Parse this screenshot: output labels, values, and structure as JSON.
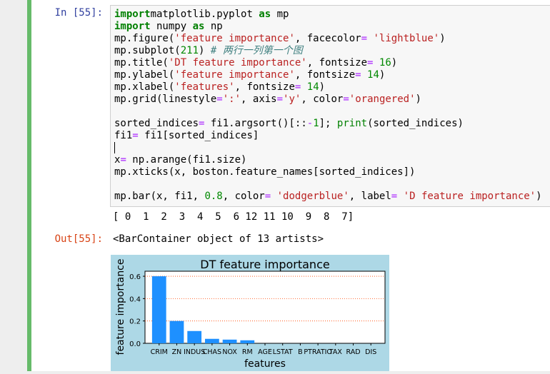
{
  "cell": {
    "in_prompt": "In [55]:",
    "out_prompt": "Out[55]:",
    "code_lines": [
      [
        [
          "kw",
          "import"
        ],
        [
          "",
          "matplotlib.pyplot "
        ],
        [
          "kw",
          "as"
        ],
        [
          "",
          " mp"
        ]
      ],
      [
        [
          "kw",
          "import"
        ],
        [
          "",
          " numpy "
        ],
        [
          "kw",
          "as"
        ],
        [
          "",
          " np"
        ]
      ],
      [
        [
          "",
          "mp.figure("
        ],
        [
          "st",
          "'feature importance'"
        ],
        [
          "",
          ", facecolor"
        ],
        [
          "op",
          "="
        ],
        [
          "",
          " "
        ],
        [
          "st",
          "'lightblue'"
        ],
        [
          "",
          ")"
        ]
      ],
      [
        [
          "",
          "mp.subplot("
        ],
        [
          "nu",
          "211"
        ],
        [
          "",
          ") "
        ],
        [
          "cm",
          "# 两行一列第一个图"
        ]
      ],
      [
        [
          "",
          "mp.title("
        ],
        [
          "st",
          "'DT feature importance'"
        ],
        [
          "",
          ", fontsize"
        ],
        [
          "op",
          "="
        ],
        [
          "",
          " "
        ],
        [
          "nu",
          "16"
        ],
        [
          "",
          ")"
        ]
      ],
      [
        [
          "",
          "mp.ylabel("
        ],
        [
          "st",
          "'feature importance'"
        ],
        [
          "",
          ", fontsize"
        ],
        [
          "op",
          "="
        ],
        [
          "",
          " "
        ],
        [
          "nu",
          "14"
        ],
        [
          "",
          ")"
        ]
      ],
      [
        [
          "",
          "mp.xlabel("
        ],
        [
          "st",
          "'features'"
        ],
        [
          "",
          ", fontsize"
        ],
        [
          "op",
          "="
        ],
        [
          "",
          " "
        ],
        [
          "nu",
          "14"
        ],
        [
          "",
          ")"
        ]
      ],
      [
        [
          "",
          "mp.grid(linestyle"
        ],
        [
          "op",
          "="
        ],
        [
          "st",
          "':'"
        ],
        [
          "",
          ", axis"
        ],
        [
          "op",
          "="
        ],
        [
          "st",
          "'y'"
        ],
        [
          "",
          ", color"
        ],
        [
          "op",
          "="
        ],
        [
          "st",
          "'orangered'"
        ],
        [
          "",
          ")"
        ]
      ],
      [],
      [
        [
          "",
          "sorted_indices"
        ],
        [
          "op",
          "="
        ],
        [
          "",
          " fi1.argsort()[::"
        ],
        [
          "op",
          "-"
        ],
        [
          "nu",
          "1"
        ],
        [
          "",
          "]; "
        ],
        [
          "bi",
          "print"
        ],
        [
          "",
          "(sorted_indices)"
        ]
      ],
      [
        [
          "",
          "fi1"
        ],
        [
          "op",
          "="
        ],
        [
          "",
          " fi1[sorted_indices]"
        ]
      ],
      [
        [
          "cursor",
          ""
        ]
      ],
      [
        [
          "",
          "x"
        ],
        [
          "op",
          "="
        ],
        [
          "",
          " np.arange(fi1.size)"
        ]
      ],
      [
        [
          "",
          "mp.xticks(x, boston.feature_names[sorted_indices])"
        ]
      ],
      [],
      [
        [
          "",
          "mp.bar(x, fi1, "
        ],
        [
          "nu",
          "0.8"
        ],
        [
          "",
          ", color"
        ],
        [
          "op",
          "="
        ],
        [
          "",
          " "
        ],
        [
          "st",
          "'dodgerblue'"
        ],
        [
          "",
          ", label"
        ],
        [
          "op",
          "="
        ],
        [
          "",
          " "
        ],
        [
          "st",
          "'D feature importance'"
        ],
        [
          "",
          ")"
        ]
      ]
    ],
    "stdout": "[ 0  1  2  3  4  5  6 12 11 10  9  8  7]",
    "output_text": "<BarContainer object of 13 artists>"
  },
  "chart_data": {
    "type": "bar",
    "title": "DT feature importance",
    "xlabel": "features",
    "ylabel": "feature importance",
    "categories": [
      "CRIM",
      "ZN",
      "INDUS",
      "CHAS",
      "NOX",
      "RM",
      "AGE",
      "LSTAT",
      "B",
      "PTRATIO",
      "TAX",
      "RAD",
      "DIS"
    ],
    "values": [
      0.6,
      0.2,
      0.11,
      0.04,
      0.033,
      0.027,
      0,
      0,
      0,
      0,
      0,
      0,
      0
    ],
    "yticks": [
      "0.0",
      "0.2",
      "0.4",
      "0.6"
    ],
    "ylim": [
      0,
      0.645
    ],
    "grid": "y, dotted",
    "bar_color": "#1e90ff",
    "grid_color": "#ff4500",
    "facecolor": "#add8e6"
  }
}
